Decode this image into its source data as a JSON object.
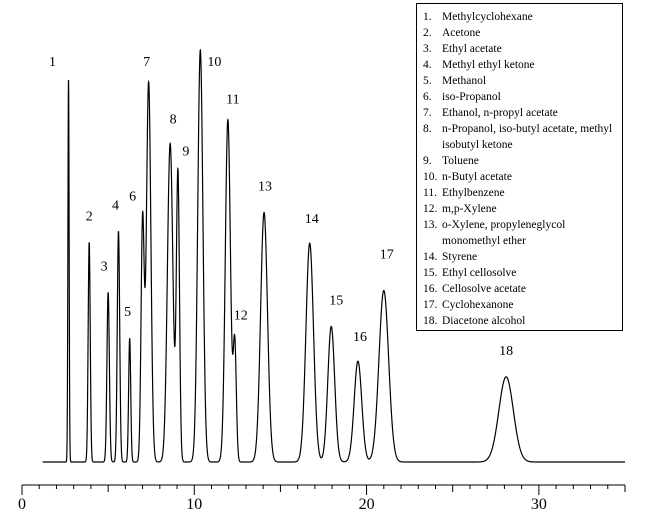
{
  "chart_data": {
    "type": "line",
    "title": "",
    "xlabel": "",
    "ylabel": "",
    "xlim": [
      0,
      35
    ],
    "ylim": [
      0,
      100
    ],
    "x_ticks": [
      0,
      10,
      20,
      30
    ],
    "x_tick_labels": [
      "0",
      "10",
      "20",
      "30"
    ],
    "grid": false,
    "legend_position": "top-right",
    "peaks": [
      {
        "label": "1",
        "name": "Methylcyclohexane",
        "rt": 2.7,
        "height": 100,
        "width": 0.035
      },
      {
        "label": "2",
        "name": "Acetone",
        "rt": 3.9,
        "height": 57.5,
        "width": 0.06
      },
      {
        "label": "3",
        "name": "Ethyl acetate",
        "rt": 5.0,
        "height": 44.4,
        "width": 0.07
      },
      {
        "label": "4",
        "name": "Methyl ethyl ketone",
        "rt": 5.6,
        "height": 60.4,
        "width": 0.07
      },
      {
        "label": "5",
        "name": "Methanol",
        "rt": 6.25,
        "height": 32.4,
        "width": 0.06
      },
      {
        "label": "6",
        "name": "iso-Propanol",
        "rt": 7.0,
        "height": 62.7,
        "width": 0.09
      },
      {
        "label": "7",
        "name": "Ethanol, n-propyl acetate",
        "rt": 7.35,
        "height": 99.5,
        "width": 0.13
      },
      {
        "label": "8",
        "name": "n-Propanol, iso-butyl acetate, methyl isobutyl ketone",
        "rt": 8.6,
        "height": 83.4,
        "width": 0.16
      },
      {
        "label": "9",
        "name": "Toluene",
        "rt": 9.05,
        "height": 75.2,
        "width": 0.09
      },
      {
        "label": "10",
        "name": "n-Butyl acetate",
        "rt": 10.35,
        "height": 107.8,
        "width": 0.15
      },
      {
        "label": "11",
        "name": "Ethylbenzene",
        "rt": 11.95,
        "height": 89.6,
        "width": 0.15
      },
      {
        "label": "12",
        "name": "m,p-Xylene",
        "rt": 12.35,
        "height": 30.5,
        "width": 0.09
      },
      {
        "label": "13",
        "name": "o-Xylene, propyleneglycol monomethyl ether",
        "rt": 14.05,
        "height": 65.3,
        "width": 0.2
      },
      {
        "label": "14",
        "name": "Styrene",
        "rt": 16.7,
        "height": 57.3,
        "width": 0.22
      },
      {
        "label": "15",
        "name": "Ethyl cellosolve",
        "rt": 17.95,
        "height": 35.5,
        "width": 0.2
      },
      {
        "label": "16",
        "name": "Cellosolve acetate",
        "rt": 19.5,
        "height": 26.4,
        "width": 0.22
      },
      {
        "label": "17",
        "name": "Cyclohexanone",
        "rt": 21.0,
        "height": 44.9,
        "width": 0.28
      },
      {
        "label": "18",
        "name": "Diacetone alcohol",
        "rt": 28.1,
        "height": 22.3,
        "width": 0.42
      }
    ]
  }
}
